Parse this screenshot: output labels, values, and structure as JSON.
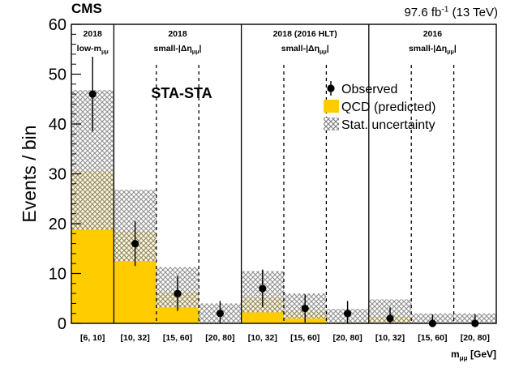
{
  "chart_data": {
    "type": "bar",
    "experiment": "CMS",
    "lumi": "97.6 fb",
    "lumi_exp": "-1",
    "lumi_energy": " (13 TeV)",
    "ylabel": "Events / bin",
    "xlabel_main": "m",
    "xlabel_sub": "μμ",
    "xlabel_unit": " [GeV]",
    "annotation": "STA-STA",
    "ylim": [
      0,
      60
    ],
    "yticks": [
      0,
      10,
      20,
      30,
      40,
      50,
      60
    ],
    "categories": [
      "[6, 10]",
      "[10, 32]",
      "[15, 60]",
      "[20, 80]",
      "[10, 32]",
      "[15, 60]",
      "[20, 80]",
      "[10, 32]",
      "[15, 60]",
      "[20, 80]"
    ],
    "groups": [
      {
        "title": "2018",
        "sub_main": "low-m",
        "sub_sub": "μμ",
        "sub_close": "",
        "start": 0,
        "count": 1
      },
      {
        "title": "2018",
        "sub_main": "small-|Δη",
        "sub_sub": "μμ",
        "sub_close": "|",
        "start": 1,
        "count": 3
      },
      {
        "title": "2018  (2016 HLT)",
        "sub_main": "small-|Δη",
        "sub_sub": "μμ",
        "sub_close": "|",
        "start": 4,
        "count": 3
      },
      {
        "title": "2016",
        "sub_main": "small-|Δη",
        "sub_sub": "μμ",
        "sub_close": "|",
        "start": 7,
        "count": 3
      }
    ],
    "series": [
      {
        "name": "Observed",
        "values": [
          46,
          16,
          6,
          2,
          7,
          3,
          2,
          1,
          0,
          0
        ],
        "err": [
          7.5,
          4.5,
          3.5,
          2.5,
          3.8,
          2.8,
          2.5,
          2.2,
          1.8,
          1.8
        ]
      },
      {
        "name": "QCD (predicted)",
        "values": [
          30.5,
          18.5,
          6.3,
          0.1,
          5.2,
          2.5,
          0.2,
          1.4,
          0.1,
          0.1
        ]
      },
      {
        "name": "Stat. uncertainty",
        "low": [
          18.8,
          12.5,
          3.2,
          0,
          2.2,
          1.0,
          0,
          0,
          0,
          0
        ],
        "high": [
          46.8,
          26.8,
          11.3,
          4.0,
          10.5,
          6.0,
          2.9,
          4.8,
          2.0,
          2.0
        ]
      }
    ],
    "legend_position": "top-right",
    "colors": {
      "qcd": "#ffcc00",
      "axis": "#000000",
      "hatch": "#888888",
      "marker": "#000000"
    }
  }
}
